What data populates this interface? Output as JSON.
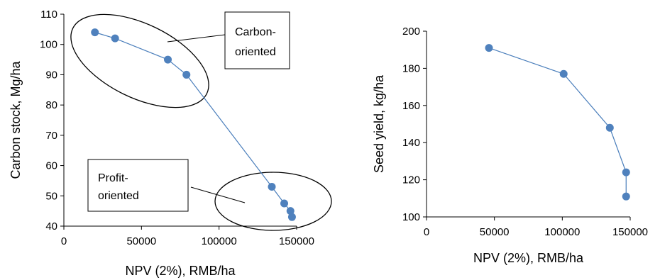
{
  "chart_data": [
    {
      "type": "scatter",
      "xlabel": "NPV (2%), RMB/ha",
      "ylabel": "Carbon stock, Mg/ha",
      "xlim": [
        0,
        150000
      ],
      "ylim": [
        40,
        110
      ],
      "xticks": [
        0,
        50000,
        100000,
        150000
      ],
      "yticks": [
        40,
        50,
        60,
        70,
        80,
        90,
        100,
        110
      ],
      "grid": false,
      "series": [
        {
          "x": [
            20000,
            33000,
            67000,
            79000,
            134000,
            142000,
            146000,
            147000
          ],
          "y": [
            104,
            102,
            95,
            90,
            53,
            47.5,
            45,
            43
          ]
        }
      ],
      "annotations": [
        {
          "label_lines": [
            "Carbon-",
            "oriented"
          ]
        },
        {
          "label_lines": [
            "Profit-",
            "oriented"
          ]
        }
      ]
    },
    {
      "type": "scatter",
      "xlabel": "NPV (2%), RMB/ha",
      "ylabel": "Seed yield, kg/ha",
      "xlim": [
        0,
        150000
      ],
      "ylim": [
        100,
        200
      ],
      "xticks": [
        0,
        50000,
        100000,
        150000
      ],
      "yticks": [
        100,
        120,
        140,
        160,
        180,
        200
      ],
      "grid": false,
      "series": [
        {
          "x": [
            46000,
            101000,
            135000,
            147000,
            147000
          ],
          "y": [
            191,
            177,
            148,
            124,
            111
          ]
        }
      ]
    }
  ]
}
